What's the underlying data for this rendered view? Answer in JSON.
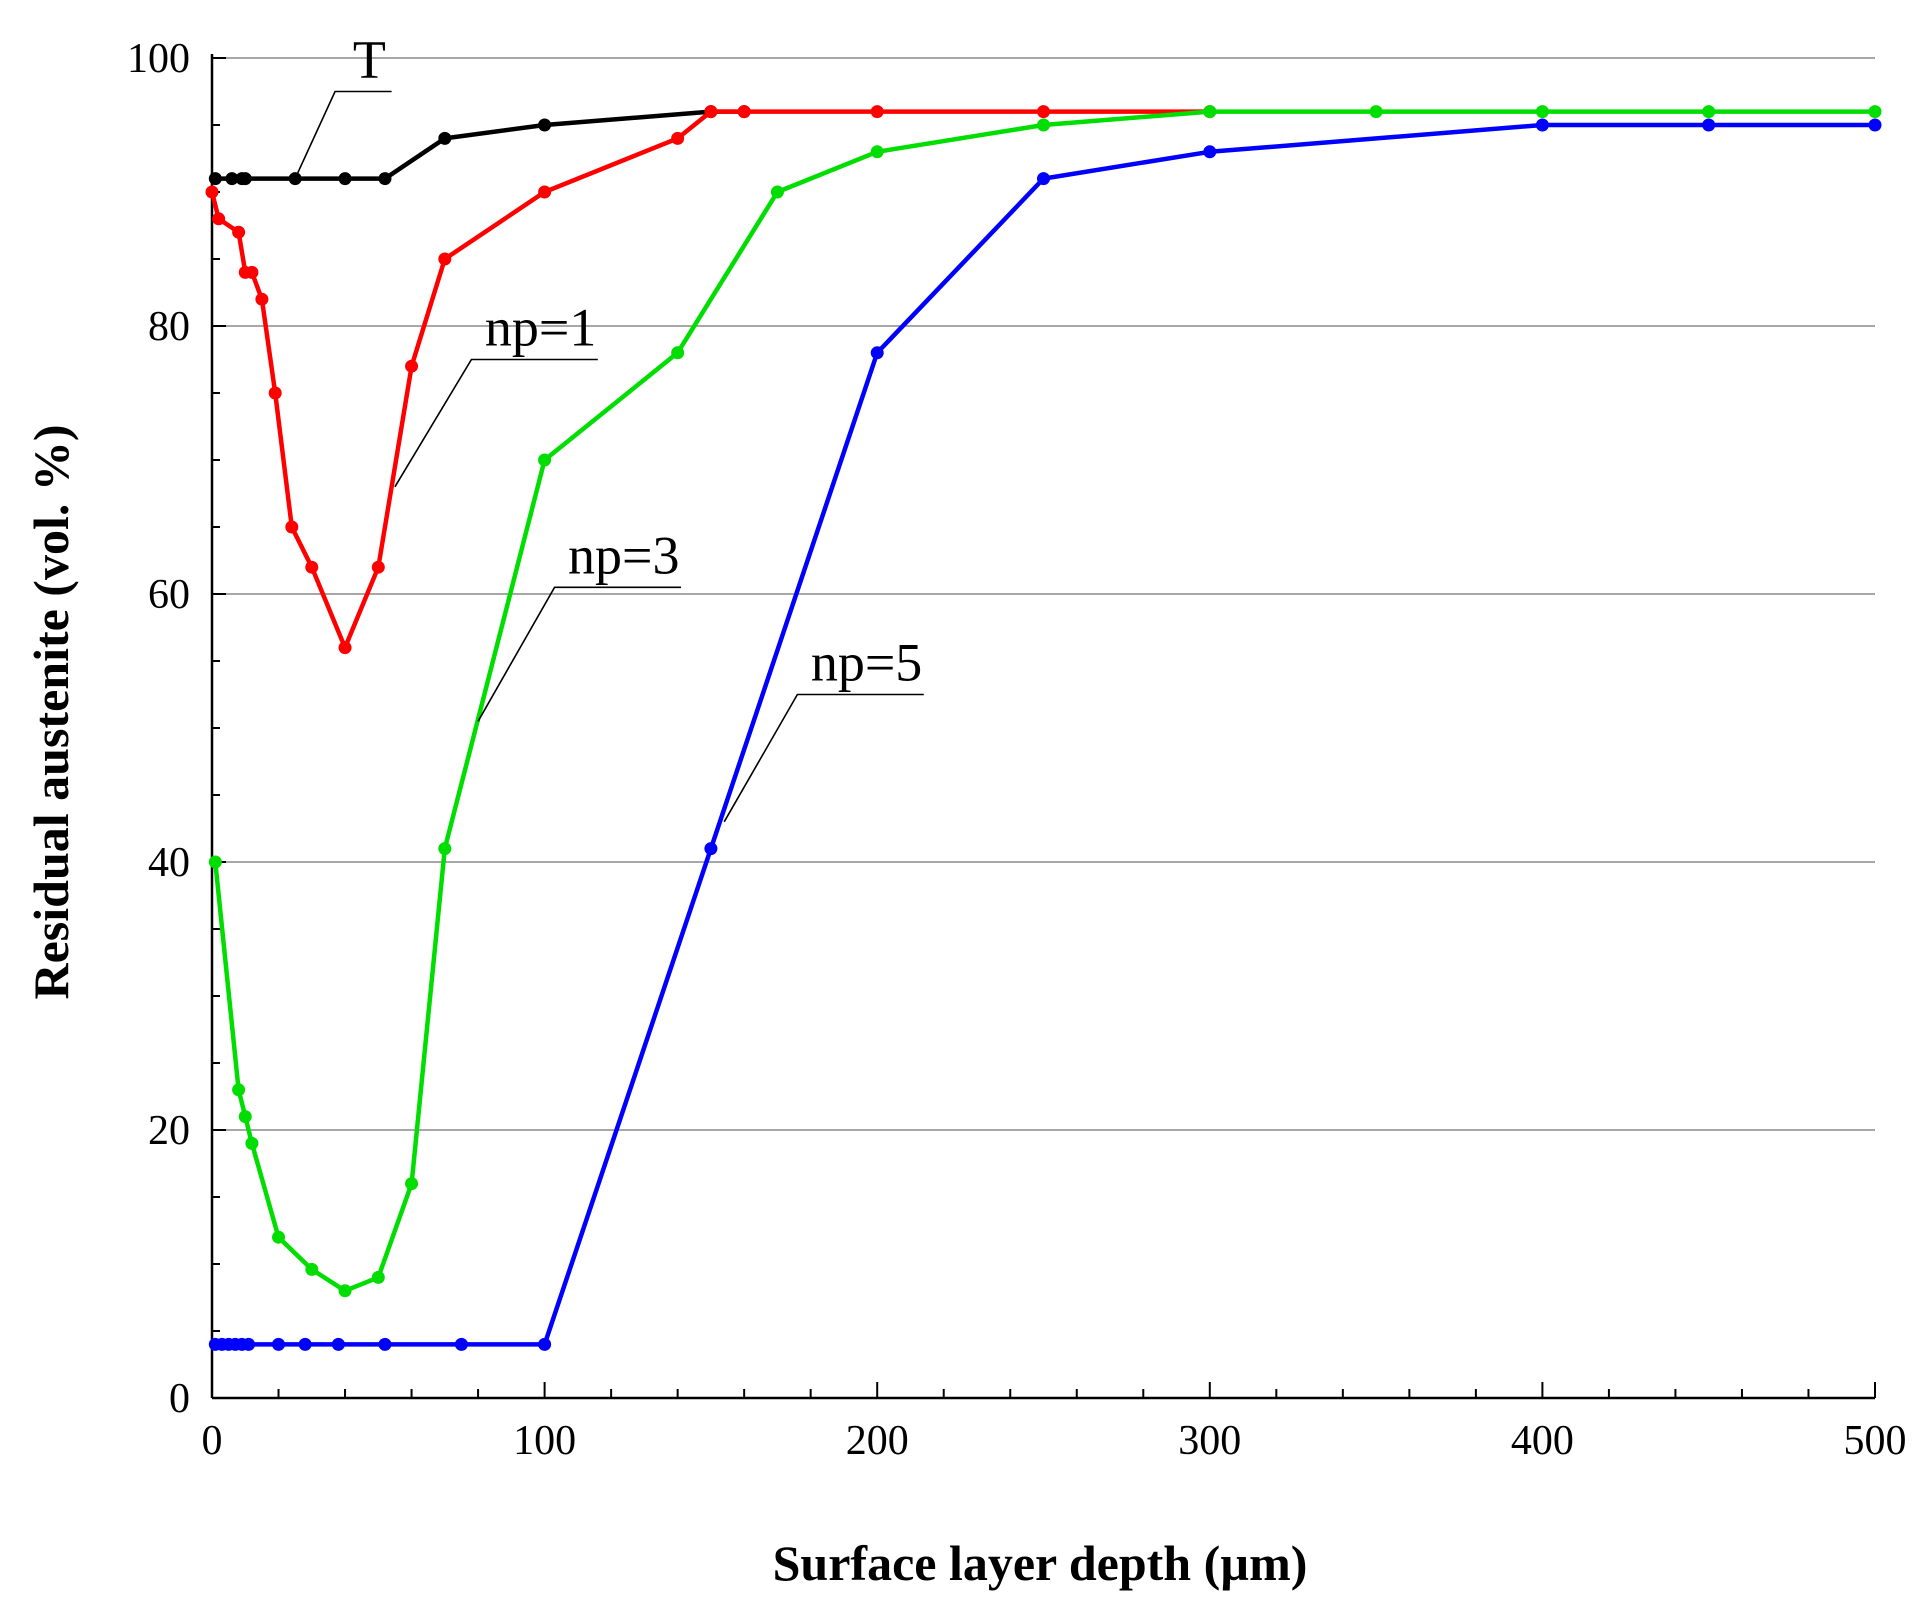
{
  "chart_data": {
    "type": "line",
    "title": "",
    "xlabel": "Surface layer depth (µm)",
    "ylabel": "Residual austenite (vol. %)",
    "xlim": [
      0,
      500
    ],
    "ylim": [
      0,
      100
    ],
    "xticks": [
      0,
      100,
      200,
      300,
      400,
      500
    ],
    "yticks": [
      0,
      20,
      40,
      60,
      80,
      100
    ],
    "xtick_labels": [
      "0",
      "100",
      "200",
      "300",
      "400",
      "500"
    ],
    "ytick_labels": [
      "0",
      "20",
      "40",
      "60",
      "80",
      "100"
    ],
    "grid": "horizontal",
    "series": [
      {
        "name": "T",
        "label": "T",
        "color": "#000000",
        "x": [
          1,
          6,
          9,
          10,
          25,
          40,
          52,
          70,
          100,
          150,
          160
        ],
        "y": [
          91,
          91,
          91,
          91,
          91,
          91,
          91,
          94,
          95,
          96,
          96
        ]
      },
      {
        "name": "np=1",
        "label": "np=1",
        "color": "#ff0000",
        "x": [
          0,
          2,
          8,
          10,
          12,
          15,
          19,
          24,
          30,
          40,
          50,
          60,
          70,
          100,
          140,
          150,
          160,
          200,
          250,
          300
        ],
        "y": [
          90,
          88,
          87,
          84,
          84,
          82,
          75,
          65,
          62,
          56,
          62,
          77,
          85,
          90,
          94,
          96,
          96,
          96,
          96,
          96
        ]
      },
      {
        "name": "np=3",
        "label": "np=3",
        "color": "#00dd00",
        "x": [
          1,
          8,
          10,
          12,
          20,
          30,
          40,
          50,
          60,
          70,
          100,
          140,
          170,
          200,
          250,
          300,
          350,
          400,
          450,
          500
        ],
        "y": [
          40,
          23,
          21,
          19,
          12,
          9.6,
          8,
          9,
          16,
          41,
          70,
          78,
          90,
          93,
          95,
          96,
          96,
          96,
          96,
          96
        ]
      },
      {
        "name": "np=5",
        "label": "np=5",
        "color": "#0000ff",
        "x": [
          1,
          3,
          5,
          7,
          9,
          11,
          20,
          28,
          38,
          52,
          75,
          100,
          150,
          200,
          250,
          300,
          400,
          450,
          500
        ],
        "y": [
          4,
          4,
          4,
          4,
          4,
          4,
          4,
          4,
          4,
          4,
          4,
          4,
          41,
          78,
          91,
          93,
          95,
          95,
          95
        ]
      }
    ],
    "annotations": [
      {
        "series": "T",
        "text": "T",
        "leader_from": [
          25,
          91
        ],
        "leader_to": [
          37,
          97.5
        ],
        "shelf_to": [
          54,
          97.5
        ]
      },
      {
        "series": "np=1",
        "text": "np=1",
        "leader_from": [
          55,
          68
        ],
        "leader_to": [
          78,
          77.5
        ],
        "shelf_to": [
          116,
          77.5
        ]
      },
      {
        "series": "np=3",
        "text": "np=3",
        "leader_from": [
          80,
          50.5
        ],
        "leader_to": [
          103,
          60.5
        ],
        "shelf_to": [
          141,
          60.5
        ]
      },
      {
        "series": "np=5",
        "text": "np=5",
        "leader_from": [
          154,
          43
        ],
        "leader_to": [
          176,
          52.5
        ],
        "shelf_to": [
          214,
          52.5
        ]
      }
    ]
  }
}
